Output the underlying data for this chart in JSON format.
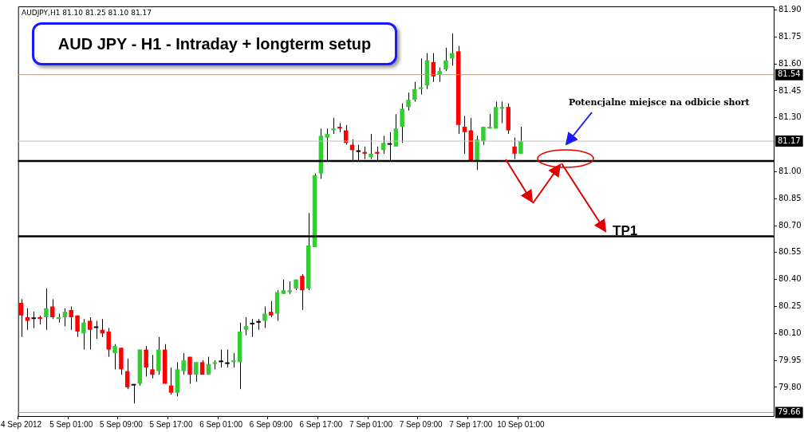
{
  "chart_data": {
    "type": "candlestick",
    "title": "AUD JPY - H1 - Intraday + longterm setup",
    "annotations": [
      "AUDJPY,H1  81.10 81.25 81.10 81.17",
      "Potencjalne miejsce na odbicie short",
      "TP1"
    ],
    "categories": [
      "4 Sep 2012",
      null,
      null,
      null,
      null,
      null,
      null,
      null,
      "5 Sep 01:00",
      null,
      null,
      null,
      null,
      null,
      null,
      null,
      "5 Sep 09:00",
      null,
      null,
      null,
      null,
      null,
      null,
      null,
      "5 Sep 17:00",
      null,
      null,
      null,
      null,
      null,
      null,
      null,
      "6 Sep 01:00",
      null,
      null,
      null,
      null,
      null,
      null,
      null,
      "6 Sep 09:00",
      null,
      null,
      null,
      null,
      null,
      null,
      null,
      "6 Sep 17:00",
      null,
      null,
      null,
      null,
      null,
      null,
      null,
      "7 Sep 01:00",
      null,
      null,
      null,
      null,
      null,
      null,
      null,
      "7 Sep 09:00",
      null,
      null,
      null,
      null,
      null,
      null,
      null,
      "7 Sep 17:00",
      null,
      null,
      null,
      null,
      null,
      null,
      null,
      "10 Sep 01:00",
      null,
      null,
      null,
      null,
      null,
      null,
      null,
      null,
      null,
      null,
      null,
      null,
      null,
      null,
      null,
      null,
      null,
      null,
      null,
      null,
      null,
      null,
      null,
      null,
      null,
      null,
      null,
      null,
      null,
      null,
      null,
      null,
      null,
      null,
      null,
      null,
      null,
      null,
      null,
      null
    ],
    "ohlc": [
      [
        80.27,
        80.29,
        80.08,
        80.2
      ],
      [
        80.19,
        80.24,
        80.12,
        80.17
      ],
      [
        80.18,
        80.22,
        80.13,
        80.18
      ],
      [
        80.19,
        80.2,
        80.15,
        80.18
      ],
      [
        80.19,
        80.35,
        80.12,
        80.24
      ],
      [
        80.25,
        80.29,
        80.18,
        80.19
      ],
      [
        80.18,
        80.21,
        80.16,
        80.19
      ],
      [
        80.19,
        80.24,
        80.14,
        80.22
      ],
      [
        80.23,
        80.25,
        80.12,
        80.19
      ],
      [
        80.2,
        80.2,
        80.08,
        80.11
      ],
      [
        80.1,
        80.18,
        80.01,
        80.16
      ],
      [
        80.17,
        80.19,
        80.01,
        80.12
      ],
      [
        80.13,
        80.17,
        80.07,
        80.13
      ],
      [
        80.12,
        80.18,
        80.08,
        80.1
      ],
      [
        80.11,
        80.13,
        79.97,
        80.01
      ],
      [
        79.99,
        80.04,
        79.9,
        80.03
      ],
      [
        80.02,
        80.02,
        79.87,
        79.9
      ],
      [
        79.89,
        79.96,
        79.79,
        79.8
      ],
      [
        79.81,
        79.81,
        79.71,
        79.81
      ],
      [
        79.82,
        80.01,
        79.81,
        80.01
      ],
      [
        80.01,
        80.03,
        79.86,
        79.91
      ],
      [
        79.9,
        79.98,
        79.85,
        79.87
      ],
      [
        79.89,
        80.08,
        79.87,
        80.01
      ],
      [
        80.01,
        80.04,
        79.82,
        79.82
      ],
      [
        79.81,
        79.91,
        79.76,
        79.77
      ],
      [
        79.77,
        79.94,
        79.75,
        79.9
      ],
      [
        79.89,
        79.99,
        79.87,
        79.95
      ],
      [
        79.97,
        79.97,
        79.82,
        79.87
      ],
      [
        79.87,
        79.94,
        79.83,
        79.94
      ],
      [
        79.94,
        79.95,
        79.87,
        79.87
      ],
      [
        79.87,
        79.97,
        79.87,
        79.93
      ],
      [
        79.93,
        79.95,
        79.9,
        79.94
      ],
      [
        79.94,
        80.01,
        79.91,
        79.94
      ],
      [
        79.93,
        80.01,
        79.91,
        79.93
      ],
      [
        79.94,
        79.99,
        79.91,
        79.95
      ],
      [
        79.94,
        80.16,
        79.79,
        80.11
      ],
      [
        80.12,
        80.19,
        80.09,
        80.14
      ],
      [
        80.15,
        80.18,
        80.08,
        80.15
      ],
      [
        80.16,
        80.18,
        80.12,
        80.16
      ],
      [
        80.17,
        80.25,
        80.13,
        80.21
      ],
      [
        80.22,
        80.28,
        80.19,
        80.2
      ],
      [
        80.21,
        80.34,
        80.17,
        80.33
      ],
      [
        80.32,
        80.4,
        80.32,
        80.34
      ],
      [
        80.33,
        80.39,
        80.32,
        80.34
      ],
      [
        80.35,
        80.4,
        80.34,
        80.4
      ],
      [
        80.42,
        80.43,
        80.23,
        80.34
      ],
      [
        80.35,
        80.77,
        80.34,
        80.59
      ],
      [
        80.58,
        80.99,
        80.58,
        80.98
      ],
      [
        80.99,
        81.24,
        80.96,
        81.2
      ],
      [
        81.19,
        81.24,
        81.06,
        81.21
      ],
      [
        81.23,
        81.3,
        81.21,
        81.24
      ],
      [
        81.25,
        81.27,
        81.22,
        81.24
      ],
      [
        81.23,
        81.26,
        81.15,
        81.16
      ],
      [
        81.15,
        81.18,
        81.06,
        81.12
      ],
      [
        81.11,
        81.15,
        81.06,
        81.11
      ],
      [
        81.11,
        81.14,
        81.07,
        81.1
      ],
      [
        81.08,
        81.21,
        81.07,
        81.1
      ],
      [
        81.11,
        81.14,
        81.06,
        81.1
      ],
      [
        81.12,
        81.2,
        81.1,
        81.16
      ],
      [
        81.15,
        81.22,
        81.06,
        81.15
      ],
      [
        81.14,
        81.32,
        81.14,
        81.24
      ],
      [
        81.25,
        81.38,
        81.16,
        81.35
      ],
      [
        81.36,
        81.44,
        81.34,
        81.4
      ],
      [
        81.4,
        81.5,
        81.39,
        81.46
      ],
      [
        81.46,
        81.63,
        81.43,
        81.47
      ],
      [
        81.48,
        81.66,
        81.46,
        81.62
      ],
      [
        81.61,
        81.66,
        81.5,
        81.53
      ],
      [
        81.54,
        81.58,
        81.5,
        81.56
      ],
      [
        81.57,
        81.69,
        81.56,
        81.62
      ],
      [
        81.63,
        81.77,
        81.59,
        81.66
      ],
      [
        81.67,
        81.7,
        81.21,
        81.26
      ],
      [
        81.25,
        81.31,
        81.1,
        81.22
      ],
      [
        81.23,
        81.3,
        81.06,
        81.06
      ],
      [
        81.06,
        81.2,
        81.01,
        81.18
      ],
      [
        81.17,
        81.25,
        81.15,
        81.25
      ],
      [
        81.24,
        81.32,
        81.24,
        81.25
      ],
      [
        81.24,
        81.39,
        81.24,
        81.36
      ],
      [
        81.35,
        81.39,
        81.27,
        81.36
      ],
      [
        81.36,
        81.38,
        81.21,
        81.23
      ],
      [
        81.14,
        81.19,
        81.07,
        81.1
      ],
      [
        81.1,
        81.25,
        81.1,
        81.17
      ],
      null,
      null,
      null,
      null,
      null,
      null,
      null,
      null,
      null,
      null,
      null,
      null,
      null,
      null,
      null,
      null,
      null,
      null,
      null,
      null,
      null,
      null,
      null,
      null,
      null,
      null,
      null,
      null,
      null,
      null,
      null,
      null,
      null,
      null,
      null,
      null,
      null,
      null,
      null,
      null
    ],
    "colors": [
      "#ff0000",
      "#ff0000",
      "#000000",
      "#ff0000",
      "#33cc33",
      "#ff0000",
      "#33cc33",
      "#33cc33",
      "#ff0000",
      "#ff0000",
      "#33cc33",
      "#ff0000",
      "#000000",
      "#ff0000",
      "#ff0000",
      "#33cc33",
      "#ff0000",
      "#ff0000",
      "#000000",
      "#33cc33",
      "#ff0000",
      "#ff0000",
      "#33cc33",
      "#ff0000",
      "#ff0000",
      "#33cc33",
      "#33cc33",
      "#ff0000",
      "#33cc33",
      "#ff0000",
      "#33cc33",
      "#33cc33",
      "#000000",
      "#000000",
      "#33cc33",
      "#33cc33",
      "#33cc33",
      "#000000",
      "#000000",
      "#33cc33",
      "#ff0000",
      "#33cc33",
      "#33cc33",
      "#33cc33",
      "#33cc33",
      "#ff0000",
      "#33cc33",
      "#33cc33",
      "#33cc33",
      "#33cc33",
      "#33cc33",
      "#ff0000",
      "#ff0000",
      "#ff0000",
      "#000000",
      "#ff0000",
      "#33cc33",
      "#ff0000",
      "#33cc33",
      "#000000",
      "#33cc33",
      "#33cc33",
      "#33cc33",
      "#33cc33",
      "#33cc33",
      "#33cc33",
      "#ff0000",
      "#33cc33",
      "#33cc33",
      "#33cc33",
      "#ff0000",
      "#ff0000",
      "#ff0000",
      "#33cc33",
      "#33cc33",
      "#33cc33",
      "#33cc33",
      "#33cc33",
      "#ff0000",
      "#ff0000",
      "#33cc33",
      null,
      null,
      null,
      null,
      null,
      null,
      null,
      null,
      null,
      null,
      null,
      null,
      null,
      null,
      null,
      null,
      null,
      null,
      null,
      null,
      null,
      null,
      null,
      null,
      null,
      null,
      null,
      null,
      null,
      null,
      null,
      null,
      null,
      null,
      null,
      null,
      null,
      null,
      null,
      null
    ],
    "ylim": [
      79.64,
      81.92
    ],
    "yticks": [
      {
        "value": 79.8,
        "label": "79.80"
      },
      79.95,
      {
        "value": 80.1,
        "label": "80.10"
      },
      80.25,
      {
        "value": 80.4,
        "label": "80.40"
      },
      80.55,
      {
        "value": 80.7,
        "label": "80.70"
      },
      80.85,
      {
        "value": 81,
        "label": "81.00"
      },
      {
        "value": 81.3,
        "label": "81.30"
      },
      81.45,
      {
        "value": 81.6,
        "label": "81.60"
      },
      81.75,
      {
        "value": 81.9,
        "label": "81.90"
      }
    ],
    "ref_lines": [
      {
        "axis": "y",
        "value": 81.54,
        "label": "81.54",
        "color": "#ff8c00"
      },
      {
        "axis": "y",
        "value": 79.66,
        "label": "79.66",
        "color": "#ff8c00"
      },
      {
        "axis": "y",
        "value": 81.17,
        "label": "81.17",
        "color": "#c0c0c0"
      },
      {
        "axis": "y",
        "value": 81.06,
        "color": "#000000"
      },
      {
        "axis": "y",
        "value": 80.64,
        "color": "#000000"
      }
    ]
  }
}
